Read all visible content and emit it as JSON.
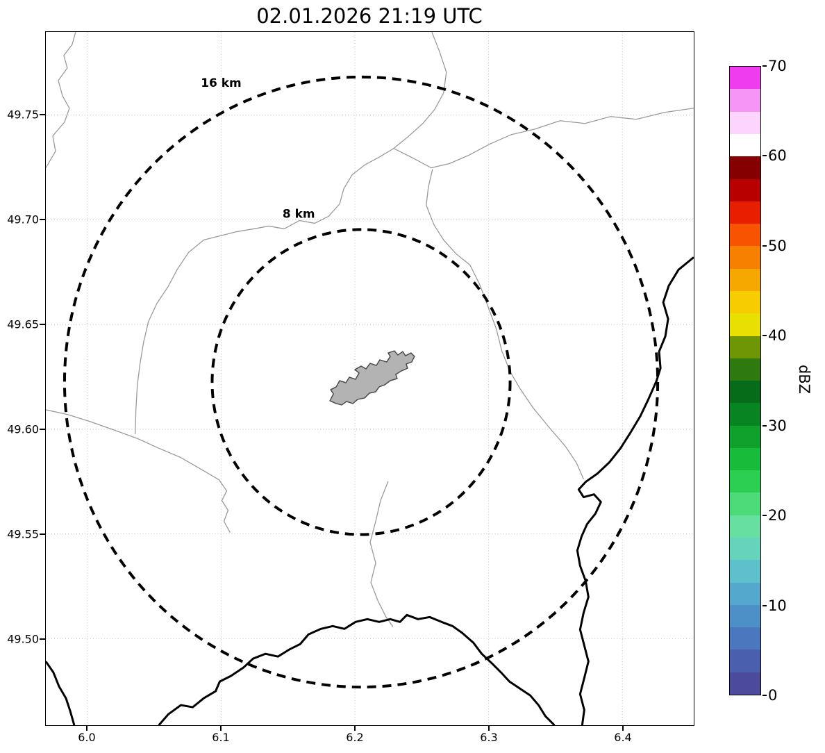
{
  "figure": {
    "title": "02.01.2026 21:19 UTC"
  },
  "map": {
    "range_rings": [
      {
        "label": "16 km"
      },
      {
        "label": "8 km"
      }
    ]
  },
  "axes": {
    "x_ticks": [
      "6.0",
      "6.1",
      "6.2",
      "6.3",
      "6.4"
    ],
    "y_ticks": [
      "49.75",
      "49.70",
      "49.65",
      "49.60",
      "49.55",
      "49.50"
    ]
  },
  "colorbar": {
    "label": "dBZ",
    "min": 0,
    "max": 70,
    "ticks": [
      "70",
      "60",
      "50",
      "40",
      "30",
      "20",
      "10",
      "0"
    ],
    "segments": [
      "#4c4b9b",
      "#4a5fae",
      "#4a77bd",
      "#4d90c8",
      "#54a8cd",
      "#5dc0ca",
      "#66d3bc",
      "#67dfa0",
      "#4cdb78",
      "#2ccf52",
      "#19bb3b",
      "#10a12d",
      "#098423",
      "#066c1a",
      "#2f7a0e",
      "#6f9604",
      "#e8e000",
      "#f7cc00",
      "#f7a800",
      "#f78000",
      "#f75300",
      "#e81e00",
      "#b90000",
      "#850000",
      "#ffffff",
      "#fcd4fc",
      "#f795f7",
      "#ee3cee"
    ]
  },
  "colors": {
    "city_fill": "#b3b3b3",
    "city_stroke": "#4a4a4a",
    "ring": "#000000",
    "country_border": "#000000",
    "admin_border": "#9a9a9a"
  }
}
